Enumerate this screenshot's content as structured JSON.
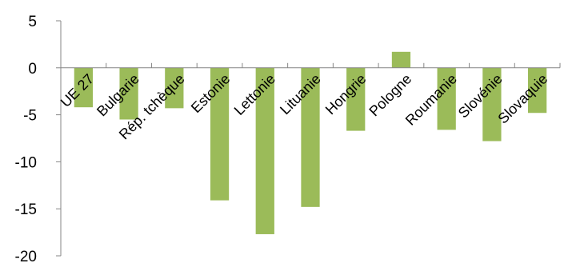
{
  "chart_data": {
    "type": "bar",
    "title": "",
    "xlabel": "",
    "ylabel": "",
    "categories": [
      "UE 27",
      "Bulgarie",
      "Rép. tchèque",
      "Estonie",
      "Lettonie",
      "Lituanie",
      "Hongrie",
      "Pologne",
      "Roumanie",
      "Slovénie",
      "Slovaquie"
    ],
    "series": [
      {
        "color": "#9bbb59",
        "values": [
          -4.2,
          -5.5,
          -4.3,
          -14.1,
          -17.7,
          -14.8,
          -6.7,
          1.7,
          -6.6,
          -7.8,
          -4.8
        ]
      }
    ],
    "ylim": [
      -20,
      5
    ],
    "yticks": [
      5,
      0,
      -5,
      -10,
      -15,
      -20
    ],
    "ytick_labels": [
      "5",
      "0",
      "-5",
      "-10",
      "-15",
      "-20"
    ],
    "grid": false,
    "legend": "none",
    "axis_color": "#868686"
  }
}
